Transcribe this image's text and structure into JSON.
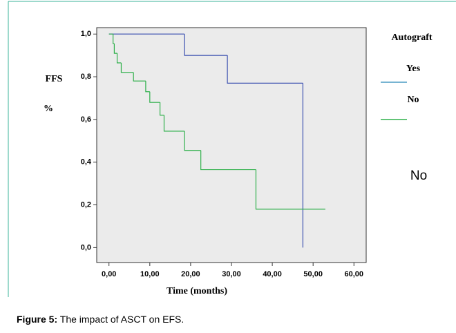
{
  "chart_data": {
    "type": "step",
    "ylabel": [
      "FFS",
      "%"
    ],
    "xlabel": "Time (months)",
    "legend_title": "Autograft",
    "annotation": "No",
    "xlim": [
      -3,
      63
    ],
    "ylim": [
      -0.07,
      1.03
    ],
    "xticks": [
      {
        "value": 0,
        "label": "0,00"
      },
      {
        "value": 10,
        "label": "10,00"
      },
      {
        "value": 20,
        "label": "20,00"
      },
      {
        "value": 30,
        "label": "30,00"
      },
      {
        "value": 40,
        "label": "40,00"
      },
      {
        "value": 50,
        "label": "50,00"
      },
      {
        "value": 60,
        "label": "60,00"
      }
    ],
    "yticks": [
      {
        "value": 0,
        "label": "0,0"
      },
      {
        "value": 0.2,
        "label": "0,2"
      },
      {
        "value": 0.4,
        "label": "0,4"
      },
      {
        "value": 0.6,
        "label": "0,6"
      },
      {
        "value": 0.8,
        "label": "0,8"
      },
      {
        "value": 1,
        "label": "1,0"
      }
    ],
    "series": [
      {
        "name": "Yes",
        "color": "#3a4fb0",
        "legend_color": "#4a9cc4",
        "x": [
          0,
          18.5,
          29,
          47.5
        ],
        "values": [
          1,
          0.9,
          0.77,
          0
        ]
      },
      {
        "name": "No",
        "color": "#2eb04a",
        "legend_color": "#2eb04a",
        "x": [
          0,
          1,
          1.3,
          2,
          3,
          6,
          9,
          10,
          12.5,
          13.5,
          18.5,
          22.5,
          36,
          53
        ],
        "values": [
          1,
          0.955,
          0.91,
          0.865,
          0.82,
          0.78,
          0.73,
          0.68,
          0.62,
          0.545,
          0.455,
          0.365,
          0.18,
          0.18
        ]
      }
    ]
  },
  "figure": {
    "label": "Figure 5:",
    "text": " The impact of ASCT on EFS."
  }
}
